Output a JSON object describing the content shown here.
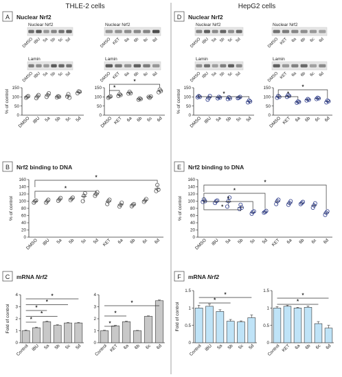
{
  "columns": [
    {
      "header": "THLE-2 cells"
    },
    {
      "header": "HepG2 cells"
    }
  ],
  "labels": {
    "blot_nuclear": "Nuclear Nrf2",
    "blot_lamin": "Lamin",
    "sec_A": "A",
    "sec_B": "B",
    "sec_C": "C",
    "sec_D": "D",
    "sec_E": "E",
    "sec_F": "F",
    "nuclear_title": "Nuclear Nrf2",
    "binding_title": "Nrf2 binding to DNA",
    "mrna_prefix": "mRNA ",
    "mrna_gene": "Nrf2",
    "pct_label": "% of control",
    "fold_label": "Fold of control",
    "star": "*"
  },
  "blot_lanes": {
    "set1": [
      "DMSO",
      "IBU",
      "5a",
      "5b",
      "5c",
      "5d"
    ],
    "set2": [
      "DMSO",
      "KET",
      "6a",
      "6b",
      "6c",
      "6d"
    ]
  },
  "colors": {
    "bar_thle": "#c8c8c8",
    "bar_hepg2": "#bfe3f7",
    "marker_thle": "#555555",
    "marker_hepg2": "#2b3a8a",
    "divider": "#888888"
  },
  "chart_data": [
    {
      "id": "A1",
      "type": "scatter",
      "ylabel": "% of control",
      "ylim": [
        0,
        150
      ],
      "yticks": [
        0,
        50,
        100,
        150
      ],
      "categories": [
        "DMSO",
        "IBU",
        "5a",
        "5b",
        "5c",
        "5d"
      ],
      "points": [
        [
          95,
          100,
          104
        ],
        [
          93,
          102,
          110
        ],
        [
          100,
          110,
          120
        ],
        [
          97,
          103,
          101
        ],
        [
          102,
          115,
          95
        ],
        [
          120,
          130,
          128
        ]
      ],
      "means": [
        100,
        102,
        110,
        101,
        105,
        126
      ],
      "sig": []
    },
    {
      "id": "A2",
      "type": "scatter",
      "ylabel": "",
      "ylim": [
        0,
        150
      ],
      "yticks": [
        0,
        50,
        100,
        150
      ],
      "categories": [
        "DMSO",
        "KET",
        "6a",
        "6b",
        "6c",
        "6d"
      ],
      "points": [
        [
          95,
          100,
          102
        ],
        [
          105,
          115,
          110
        ],
        [
          118,
          128,
          120
        ],
        [
          85,
          92,
          88
        ],
        [
          100,
          95,
          102
        ],
        [
          125,
          140,
          132
        ]
      ],
      "means": [
        99,
        110,
        122,
        88,
        99,
        132
      ],
      "sig": [
        {
          "from": 0,
          "to": 1,
          "level": 0
        },
        {
          "from": 0,
          "to": 5,
          "level": 1
        }
      ]
    },
    {
      "id": "D1",
      "type": "scatter",
      "ylabel": "% of control",
      "ylim": [
        0,
        150
      ],
      "yticks": [
        0,
        50,
        100,
        150
      ],
      "categories": [
        "DMSO",
        "IBU",
        "5a",
        "5b",
        "5c",
        "5d"
      ],
      "points": [
        [
          98,
          104,
          100
        ],
        [
          85,
          95,
          105
        ],
        [
          92,
          100,
          96
        ],
        [
          88,
          98,
          92
        ],
        [
          93,
          96,
          100
        ],
        [
          70,
          80,
          75
        ]
      ],
      "means": [
        100,
        95,
        96,
        92,
        96,
        75
      ],
      "sig": [
        {
          "from": 0,
          "to": 5,
          "level": 0
        }
      ]
    },
    {
      "id": "D2",
      "type": "scatter",
      "ylabel": "",
      "ylim": [
        0,
        150
      ],
      "yticks": [
        0,
        50,
        100,
        150
      ],
      "categories": [
        "DMSO",
        "KET",
        "6a",
        "6b",
        "6c",
        "6d"
      ],
      "points": [
        [
          95,
          105,
          100
        ],
        [
          100,
          110,
          105
        ],
        [
          68,
          75,
          72
        ],
        [
          80,
          88,
          84
        ],
        [
          88,
          95,
          92
        ],
        [
          70,
          80,
          76
        ]
      ],
      "means": [
        100,
        105,
        72,
        84,
        92,
        76
      ],
      "sig": [
        {
          "from": 0,
          "to": 2,
          "level": 0
        },
        {
          "from": 0,
          "to": 5,
          "level": 1
        }
      ]
    },
    {
      "id": "B",
      "type": "scatter",
      "ylabel": "% of control",
      "ylim": [
        0,
        160
      ],
      "yticks": [
        0,
        20,
        40,
        60,
        80,
        100,
        120,
        140,
        160
      ],
      "categories": [
        "DMSO",
        "IBU",
        "5a",
        "5b",
        "5c",
        "5d",
        "KET",
        "6a",
        "6b",
        "6c",
        "6d"
      ],
      "points": [
        [
          96,
          100,
          102
        ],
        [
          96,
          100,
          104
        ],
        [
          101,
          105,
          109
        ],
        [
          103,
          107,
          110
        ],
        [
          100,
          115,
          122
        ],
        [
          115,
          120,
          125
        ],
        [
          92,
          100,
          104
        ],
        [
          85,
          90,
          96
        ],
        [
          86,
          90,
          92
        ],
        [
          98,
          102,
          106
        ],
        [
          128,
          145,
          132
        ]
      ],
      "means": [
        100,
        100,
        105,
        107,
        113,
        120,
        99,
        90,
        90,
        102,
        135
      ],
      "sig": [
        {
          "from": 0,
          "to": 5,
          "level": 0
        },
        {
          "from": 0,
          "to": 10,
          "level": 1
        }
      ]
    },
    {
      "id": "E",
      "type": "scatter",
      "ylabel": "% of control",
      "ylim": [
        0,
        160
      ],
      "yticks": [
        0,
        20,
        40,
        60,
        80,
        100,
        120,
        140,
        160
      ],
      "categories": [
        "DMSO",
        "IBU",
        "5a",
        "5b",
        "5c",
        "5d",
        "KET",
        "6a",
        "6b",
        "6c",
        "6d"
      ],
      "points": [
        [
          98,
          105,
          100
        ],
        [
          95,
          100,
          102
        ],
        [
          85,
          100,
          110
        ],
        [
          78,
          90,
          82
        ],
        [
          65,
          70,
          72
        ],
        [
          68,
          70,
          73
        ],
        [
          92,
          100,
          104
        ],
        [
          90,
          95,
          100
        ],
        [
          92,
          95,
          98
        ],
        [
          82,
          88,
          94
        ],
        [
          62,
          68,
          72
        ]
      ],
      "means": [
        101,
        99,
        98,
        83,
        69,
        70,
        99,
        95,
        95,
        88,
        67
      ],
      "sig": [
        {
          "from": 0,
          "to": 3,
          "level": 0
        },
        {
          "from": 0,
          "to": 4,
          "level": 1
        },
        {
          "from": 0,
          "to": 5,
          "level": 2
        },
        {
          "from": 0,
          "to": 10,
          "level": 3
        }
      ]
    },
    {
      "id": "C1",
      "type": "bar",
      "ylabel": "Fold of control",
      "ylim": [
        0,
        4
      ],
      "yticks": [
        0,
        1,
        2,
        3,
        4
      ],
      "categories": [
        "Control",
        "IBU",
        "5a",
        "5b",
        "5c",
        "5d"
      ],
      "values": [
        1.0,
        1.25,
        1.75,
        1.45,
        1.65,
        1.65
      ],
      "errors": [
        0.05,
        0.05,
        0.05,
        0.05,
        0.04,
        0.04
      ],
      "sig": [
        {
          "from": 0,
          "to": 1,
          "level": 0
        },
        {
          "from": 0,
          "to": 3,
          "level": 1
        },
        {
          "from": 0,
          "to": 2,
          "level": 2
        },
        {
          "from": 0,
          "to": 4,
          "level": 3
        },
        {
          "from": 0,
          "to": 5,
          "level": 4
        }
      ]
    },
    {
      "id": "C2",
      "type": "bar",
      "ylabel": "",
      "ylim": [
        0,
        4
      ],
      "yticks": [
        0,
        1,
        2,
        3,
        4
      ],
      "categories": [
        "Control",
        "KET",
        "6a",
        "6b",
        "6c",
        "6d"
      ],
      "values": [
        1.0,
        1.4,
        1.75,
        1.0,
        2.2,
        3.5
      ],
      "errors": [
        0.04,
        0.05,
        0.05,
        0.03,
        0.04,
        0.06
      ],
      "sig": [
        {
          "from": 0,
          "to": 1,
          "level": 0
        },
        {
          "from": 0,
          "to": 2,
          "level": 1
        },
        {
          "from": 0,
          "to": 5,
          "level": 2
        }
      ]
    },
    {
      "id": "F1",
      "type": "bar",
      "ylabel": "Fold of control",
      "ylim": [
        0,
        1.5
      ],
      "yticks": [
        0.0,
        0.5,
        1.0,
        1.5
      ],
      "categories": [
        "Control",
        "IBU",
        "5a",
        "5b",
        "5c",
        "5d"
      ],
      "values": [
        1.0,
        1.05,
        0.9,
        0.62,
        0.6,
        0.72
      ],
      "errors": [
        0.08,
        0.07,
        0.05,
        0.05,
        0.03,
        0.08
      ],
      "sig": [
        {
          "from": 0,
          "to": 3,
          "level": 0
        },
        {
          "from": 0,
          "to": 5,
          "level": 1
        }
      ]
    },
    {
      "id": "F2",
      "type": "bar",
      "ylabel": "",
      "ylim": [
        0,
        1.5
      ],
      "yticks": [
        0.0,
        0.5,
        1.0,
        1.5
      ],
      "categories": [
        "Control",
        "KET",
        "6a",
        "6b",
        "6c",
        "6d"
      ],
      "values": [
        1.0,
        1.05,
        1.0,
        1.02,
        0.55,
        0.42
      ],
      "errors": [
        0.04,
        0.03,
        0.02,
        0.04,
        0.06,
        0.08
      ],
      "sig": [
        {
          "from": 0,
          "to": 4,
          "level": 0
        },
        {
          "from": 0,
          "to": 5,
          "level": 1
        }
      ]
    }
  ]
}
